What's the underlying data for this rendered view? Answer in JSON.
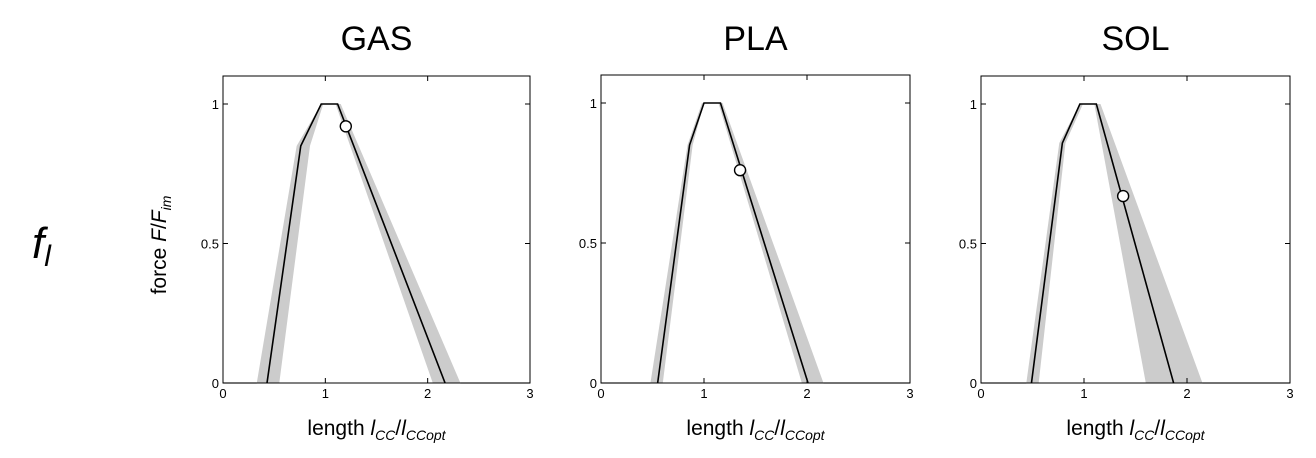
{
  "figure": {
    "row_label": {
      "main": "f",
      "sub": "l"
    },
    "ylabel": {
      "text": "force ",
      "var": "F",
      "sep": "/",
      "var2": "F",
      "var2_sub": "im"
    },
    "xlabel": {
      "text": "length ",
      "var": "l",
      "var_sub": "CC",
      "sep": "/",
      "var2": "l",
      "var2_sub": "CCopt"
    }
  },
  "style": {
    "band_color": "#cccccc",
    "line_color": "#000000",
    "marker_fill": "#ffffff"
  },
  "chart_data": [
    {
      "type": "line",
      "title": "GAS",
      "xlim": [
        0,
        3
      ],
      "ylim": [
        0,
        1
      ],
      "xticks": [
        0,
        1,
        2,
        3
      ],
      "yticks": [
        0,
        0.5,
        1
      ],
      "x": [
        0.43,
        0.76,
        0.96,
        1.12,
        2.17
      ],
      "y": [
        0,
        0.85,
        1,
        1,
        0
      ],
      "band_upper": {
        "x": [
          0.33,
          0.72,
          0.96,
          1.15,
          2.32
        ],
        "y": [
          0,
          0.85,
          1,
          1,
          0
        ]
      },
      "band_lower": {
        "x": [
          0.55,
          0.85,
          0.98,
          1.1,
          2.05
        ],
        "y": [
          0,
          0.85,
          1,
          1,
          0
        ]
      },
      "marker": {
        "x": 1.2,
        "y": 0.92
      }
    },
    {
      "type": "line",
      "title": "PLA",
      "xlim": [
        0,
        3
      ],
      "ylim": [
        0,
        1
      ],
      "xticks": [
        0,
        1,
        2,
        3
      ],
      "yticks": [
        0,
        0.5,
        1
      ],
      "x": [
        0.55,
        0.86,
        1.0,
        1.16,
        2.01
      ],
      "y": [
        0,
        0.85,
        1,
        1,
        0
      ],
      "band_upper": {
        "x": [
          0.48,
          0.84,
          0.98,
          1.18,
          2.16
        ],
        "y": [
          0,
          0.85,
          1,
          1,
          0
        ]
      },
      "band_lower": {
        "x": [
          0.6,
          0.89,
          1.0,
          1.14,
          1.95
        ],
        "y": [
          0,
          0.85,
          1,
          1,
          0
        ]
      },
      "marker": {
        "x": 1.35,
        "y": 0.76
      }
    },
    {
      "type": "line",
      "title": "SOL",
      "xlim": [
        0,
        3
      ],
      "ylim": [
        0,
        1
      ],
      "xticks": [
        0,
        1,
        2,
        3
      ],
      "yticks": [
        0,
        0.5,
        1
      ],
      "x": [
        0.49,
        0.79,
        0.96,
        1.12,
        1.87
      ],
      "y": [
        0,
        0.86,
        1,
        1,
        0
      ],
      "band_upper": {
        "x": [
          0.44,
          0.76,
          0.96,
          1.16,
          2.15
        ],
        "y": [
          0,
          0.86,
          1,
          1,
          0
        ]
      },
      "band_lower": {
        "x": [
          0.56,
          0.82,
          0.99,
          1.1,
          1.6
        ],
        "y": [
          0,
          0.86,
          1,
          1,
          0
        ]
      },
      "marker": {
        "x": 1.38,
        "y": 0.67
      }
    }
  ]
}
